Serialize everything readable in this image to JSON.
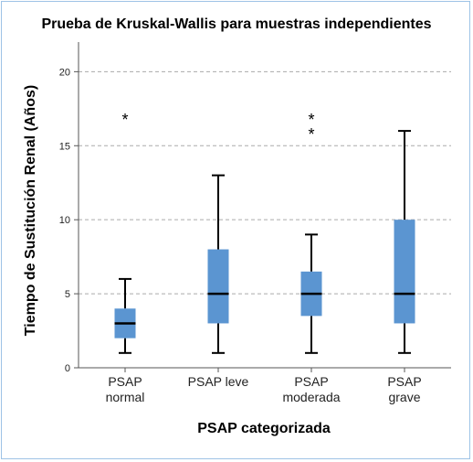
{
  "chart_data": {
    "type": "boxplot",
    "title": "Prueba de Kruskal-Wallis para muestras independientes",
    "xlabel": "PSAP categorizada",
    "ylabel": "Tiempo de Sustitución Renal (Años)",
    "ylim": [
      0,
      22
    ],
    "yticks": [
      0,
      5,
      10,
      15,
      20
    ],
    "grid": true,
    "box_color": "#5b95d1",
    "categories": [
      {
        "label_lines": [
          "PSAP",
          "normal"
        ],
        "min": 1,
        "q1": 2,
        "median": 3,
        "q3": 4,
        "max": 6,
        "outliers": [
          17
        ]
      },
      {
        "label_lines": [
          "PSAP leve"
        ],
        "min": 1,
        "q1": 3,
        "median": 5,
        "q3": 8,
        "max": 13,
        "outliers": []
      },
      {
        "label_lines": [
          "PSAP",
          "moderada"
        ],
        "min": 1,
        "q1": 3.5,
        "median": 5,
        "q3": 6.5,
        "max": 9,
        "outliers": [
          16,
          17
        ]
      },
      {
        "label_lines": [
          "PSAP",
          "grave"
        ],
        "min": 1,
        "q1": 3,
        "median": 5,
        "q3": 10,
        "max": 16,
        "outliers": []
      }
    ]
  }
}
